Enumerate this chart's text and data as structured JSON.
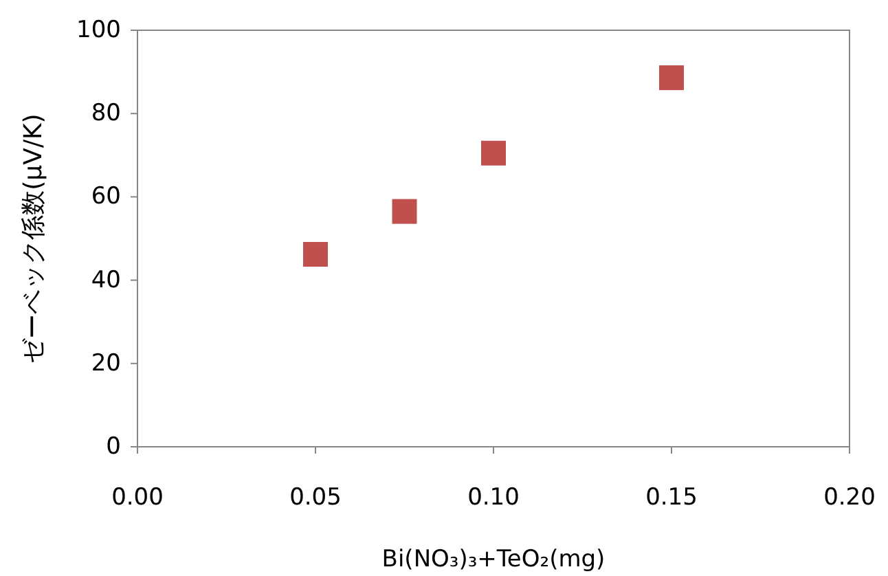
{
  "chart_data": {
    "type": "scatter",
    "xlabel": "Bi(NO₃)₃+TeO₂(mg)",
    "ylabel": "ゼーベック係数(μV/K)",
    "x": [
      0.05,
      0.075,
      0.1,
      0.15
    ],
    "series": [
      {
        "color": "#c0504d",
        "values": [
          46.2,
          56.5,
          70.5,
          88.6
        ]
      }
    ],
    "marker": "square",
    "grid": false,
    "xlim": [
      0,
      0.2
    ],
    "xticks": [
      {
        "value": 0,
        "label": "0.00"
      },
      {
        "value": 0.05,
        "label": "0.05"
      },
      {
        "value": 0.1,
        "label": "0.10"
      },
      {
        "value": 0.15,
        "label": "0.15"
      },
      {
        "value": 0.2,
        "label": "0.20"
      }
    ],
    "ylim": [
      0,
      100
    ],
    "yticks": [
      0,
      20,
      40,
      60,
      80,
      100
    ]
  }
}
